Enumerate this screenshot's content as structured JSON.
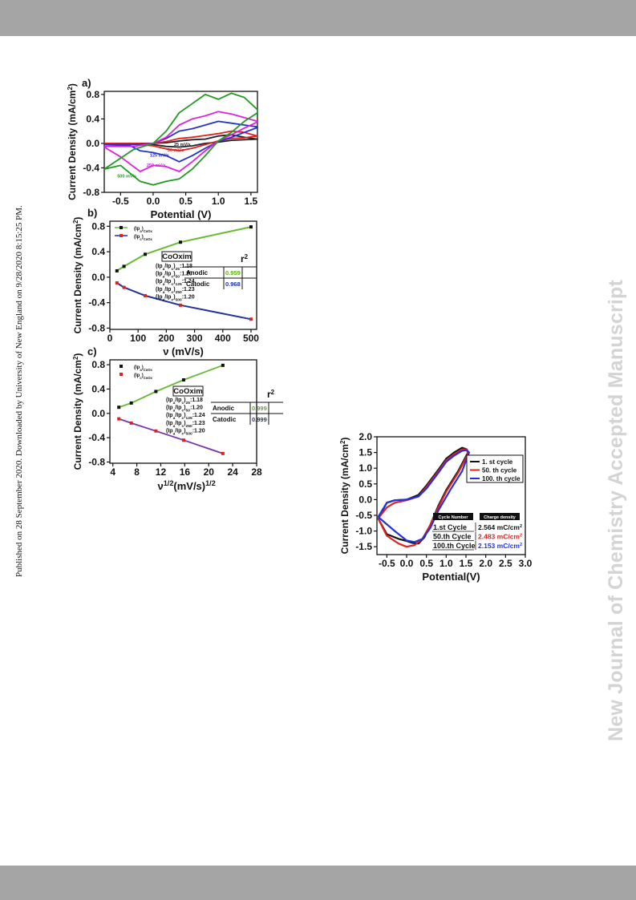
{
  "page": {
    "side_note": "Published on 28 September 2020. Downloaded by University of New England on 9/28/2020 8:15:25 PM.",
    "watermark": "New Journal of Chemistry Accepted Manuscript",
    "colors": {
      "band": "#a5a5a5",
      "watermark": "#d4d4d4"
    }
  },
  "chart_data": [
    {
      "type": "line",
      "panel_label": "a)",
      "xlabel": "Potential (V)",
      "ylabel": "Current Density (mA/cm²)",
      "xlim": [
        -0.75,
        1.6
      ],
      "ylim": [
        -0.8,
        0.85
      ],
      "xticks": [
        "-0.5",
        "0.0",
        "0.5",
        "1.0",
        "1.5"
      ],
      "yticks": [
        "0.8",
        "0.4",
        "0.0",
        "-0.4",
        "-0.8"
      ],
      "series": [
        {
          "name": "25 mV/s",
          "color": "#222222",
          "x": [
            -0.75,
            -0.3,
            0.0,
            0.2,
            0.4,
            0.6,
            0.8,
            1.0,
            1.2,
            1.4,
            1.6,
            1.6,
            1.4,
            1.2,
            1.0,
            0.8,
            0.6,
            0.4,
            0.2,
            0.0,
            -0.3,
            -0.75
          ],
          "y": [
            0.0,
            0.0,
            0.0,
            0.01,
            0.04,
            0.06,
            0.07,
            0.12,
            0.14,
            0.1,
            0.07,
            0.07,
            0.06,
            0.05,
            0.02,
            0.0,
            -0.04,
            -0.06,
            -0.05,
            -0.02,
            -0.01,
            0.0
          ]
        },
        {
          "name": "50 mV/s",
          "color": "#dd2222",
          "x": [
            -0.75,
            -0.3,
            0.0,
            0.2,
            0.4,
            0.6,
            0.8,
            1.0,
            1.2,
            1.4,
            1.6,
            1.6,
            1.4,
            1.2,
            1.0,
            0.8,
            0.6,
            0.4,
            0.2,
            0.0,
            -0.3,
            -0.75
          ],
          "y": [
            0.0,
            0.0,
            0.0,
            0.03,
            0.08,
            0.1,
            0.13,
            0.16,
            0.2,
            0.18,
            0.12,
            0.12,
            0.09,
            0.08,
            0.04,
            -0.02,
            -0.08,
            -0.12,
            -0.09,
            -0.04,
            -0.01,
            0.0
          ]
        },
        {
          "name": "125 mV/s",
          "color": "#2233cc",
          "x": [
            -0.75,
            -0.3,
            0.0,
            0.2,
            0.4,
            0.6,
            0.8,
            1.0,
            1.2,
            1.4,
            1.6,
            1.6,
            1.4,
            1.2,
            1.0,
            0.8,
            0.6,
            0.4,
            0.2,
            0.0,
            -0.2,
            -0.35,
            -0.75
          ],
          "y": [
            -0.02,
            -0.02,
            0.0,
            0.08,
            0.2,
            0.24,
            0.3,
            0.36,
            0.33,
            0.3,
            0.27,
            0.26,
            0.18,
            0.1,
            0.03,
            -0.08,
            -0.2,
            -0.3,
            -0.2,
            -0.15,
            -0.12,
            -0.04,
            -0.02
          ]
        },
        {
          "name": "250 mV/s",
          "color": "#dd22dd",
          "x": [
            -0.75,
            -0.3,
            0.0,
            0.2,
            0.4,
            0.6,
            0.8,
            1.0,
            1.2,
            1.4,
            1.6,
            1.6,
            1.4,
            1.2,
            1.0,
            0.8,
            0.6,
            0.4,
            0.2,
            0.0,
            -0.2,
            -0.5,
            -0.75
          ],
          "y": [
            -0.05,
            -0.05,
            0.0,
            0.1,
            0.3,
            0.4,
            0.45,
            0.52,
            0.48,
            0.42,
            0.36,
            0.35,
            0.25,
            0.14,
            0.04,
            -0.12,
            -0.3,
            -0.46,
            -0.38,
            -0.36,
            -0.46,
            -0.22,
            -0.06
          ]
        },
        {
          "name": "500 mV/s",
          "color": "#229922",
          "x": [
            -0.75,
            -0.3,
            0.0,
            0.2,
            0.4,
            0.6,
            0.8,
            1.0,
            1.2,
            1.4,
            1.6,
            1.6,
            1.4,
            1.2,
            1.0,
            0.8,
            0.6,
            0.4,
            0.2,
            0.0,
            -0.2,
            -0.5,
            -0.75
          ],
          "y": [
            -0.42,
            -0.1,
            0.0,
            0.2,
            0.5,
            0.65,
            0.8,
            0.72,
            0.82,
            0.75,
            0.55,
            0.5,
            0.36,
            0.18,
            0.04,
            -0.2,
            -0.42,
            -0.58,
            -0.62,
            -0.68,
            -0.62,
            -0.36,
            -0.42
          ]
        }
      ]
    },
    {
      "type": "line",
      "panel_label": "b)",
      "xlabel": "ν (mV/s)",
      "ylabel": "Current Density (mA/cm²)",
      "xlim": [
        0,
        520
      ],
      "ylim": [
        -0.82,
        0.88
      ],
      "xticks": [
        "0",
        "100",
        "200",
        "300",
        "400",
        "500"
      ],
      "yticks": [
        "0.8",
        "0.4",
        "0.0",
        "-0.4",
        "-0.8"
      ],
      "series": [
        {
          "name": "(Ipa)CoOx",
          "color": "#66bb33",
          "marker_color": "#111111",
          "x": [
            25,
            50,
            125,
            250,
            500
          ],
          "y": [
            0.1,
            0.17,
            0.36,
            0.55,
            0.79
          ]
        },
        {
          "name": "(Ipc)CoOx",
          "color": "#223399",
          "marker_color": "#dd2222",
          "x": [
            25,
            50,
            125,
            250,
            500
          ],
          "y": [
            -0.09,
            -0.16,
            -0.29,
            -0.44,
            -0.66
          ]
        }
      ],
      "annotation": {
        "title": "CoOxim",
        "ratios": [
          "(Ipa/Ipc)25:1.18",
          "(Ipa/Ipc)50:1.20",
          "(Ipa/Ipc)125:1.24",
          "(Ipa/Ipc)250:1.23",
          "(Ipa/Ipc)500:1.20"
        ],
        "r2_header": "r²",
        "anodic_label": "Anodic",
        "anodic_value": "0.959",
        "catodic_label": "Catodic",
        "catodic_value": "0.968"
      }
    },
    {
      "type": "line",
      "panel_label": "c)",
      "xlabel": "ν1/2(mV/s)1/2",
      "ylabel": "Current Density (mA/cm²)",
      "xlim": [
        3.5,
        28
      ],
      "ylim": [
        -0.82,
        0.88
      ],
      "xticks": [
        "4",
        "8",
        "12",
        "16",
        "20",
        "24",
        "28"
      ],
      "yticks": [
        "0.8",
        "0.4",
        "0.0",
        "-0.4",
        "-0.8"
      ],
      "series": [
        {
          "name": "(Ipa)CoOx",
          "color": "#66bb33",
          "marker_color": "#111111",
          "x": [
            5,
            7.07,
            11.18,
            15.81,
            22.36
          ],
          "y": [
            0.1,
            0.17,
            0.36,
            0.55,
            0.79
          ]
        },
        {
          "name": "(Ipc)CoOx",
          "color": "#7733aa",
          "marker_color": "#dd2222",
          "x": [
            5,
            7.07,
            11.18,
            15.81,
            22.36
          ],
          "y": [
            -0.09,
            -0.16,
            -0.29,
            -0.44,
            -0.66
          ]
        }
      ],
      "annotation": {
        "title": "CoOxim",
        "ratios": [
          "(Ipa/Ipc)25:1.18",
          "(Ipa/Ipc)50:1.20",
          "(Ipa/Ipc)125:1.24",
          "(Ipa/Ipc)250:1.23",
          "(Ipa/Ipc)500:1.20"
        ],
        "r2_header": "r²",
        "anodic_label": "Anodic",
        "anodic_value": "0.999",
        "catodic_label": "Catodic",
        "catodic_value": "0.999"
      }
    },
    {
      "type": "line",
      "xlabel": "Potential(V)",
      "ylabel": "Current Density (mA/cm²)",
      "xlim": [
        -0.75,
        3.0
      ],
      "ylim": [
        -1.75,
        2.0
      ],
      "xticks": [
        "-0.5",
        "0.0",
        "0.5",
        "1.0",
        "1.5",
        "2.0",
        "2.5",
        "3.0"
      ],
      "yticks": [
        "2.0",
        "1.5",
        "1.0",
        "0.5",
        "0.0",
        "-0.5",
        "-1.0",
        "-1.5"
      ],
      "series": [
        {
          "name": "1. st cycle",
          "color": "#111111",
          "x": [
            -0.72,
            -0.5,
            -0.3,
            0.0,
            0.3,
            0.5,
            0.8,
            1.0,
            1.2,
            1.4,
            1.52,
            1.55,
            1.3,
            1.0,
            0.8,
            0.6,
            0.45,
            0.3,
            0.15,
            0.0,
            -0.2,
            -0.5,
            -0.72
          ],
          "y": [
            -0.6,
            -0.1,
            -0.02,
            0.0,
            0.15,
            0.45,
            0.95,
            1.3,
            1.5,
            1.65,
            1.6,
            1.5,
            0.9,
            0.3,
            -0.2,
            -0.8,
            -1.2,
            -1.4,
            -1.38,
            -1.32,
            -1.25,
            -1.1,
            -0.6
          ]
        },
        {
          "name": "50. th cycle",
          "color": "#dd2222",
          "x": [
            -0.72,
            -0.5,
            -0.3,
            0.0,
            0.3,
            0.5,
            0.8,
            1.0,
            1.2,
            1.4,
            1.52,
            1.55,
            1.3,
            1.0,
            0.8,
            0.6,
            0.4,
            0.2,
            0.0,
            -0.2,
            -0.5,
            -0.72
          ],
          "y": [
            -0.6,
            -0.25,
            -0.1,
            -0.02,
            0.1,
            0.4,
            0.9,
            1.25,
            1.45,
            1.6,
            1.6,
            1.45,
            0.85,
            0.25,
            -0.25,
            -0.8,
            -1.25,
            -1.45,
            -1.5,
            -1.4,
            -1.15,
            -0.6
          ]
        },
        {
          "name": "100. th cycle",
          "color": "#2233dd",
          "x": [
            -0.72,
            -0.5,
            -0.3,
            0.0,
            0.3,
            0.5,
            0.8,
            1.0,
            1.2,
            1.4,
            1.52,
            1.58,
            1.4,
            1.1,
            0.8,
            0.6,
            0.4,
            0.2,
            0.0,
            -0.3,
            -0.72
          ],
          "y": [
            -0.55,
            -0.1,
            -0.02,
            0.0,
            0.1,
            0.35,
            0.85,
            1.2,
            1.4,
            1.55,
            1.58,
            1.5,
            0.9,
            0.3,
            -0.35,
            -0.9,
            -1.25,
            -1.35,
            -1.3,
            -1.0,
            -0.55
          ]
        }
      ],
      "table": {
        "headers": [
          "Cycle Number",
          "Charge density"
        ],
        "rows": [
          {
            "cycle": "1.st Cycle",
            "value": "2.564 mC/cm²",
            "color": "#111111"
          },
          {
            "cycle": "50.th Cycle",
            "value": "2.483 mC/cm²",
            "color": "#dd2222"
          },
          {
            "cycle": "100.th Cycle",
            "value": "2.153 mC/cm²",
            "color": "#2233dd"
          }
        ]
      }
    }
  ]
}
